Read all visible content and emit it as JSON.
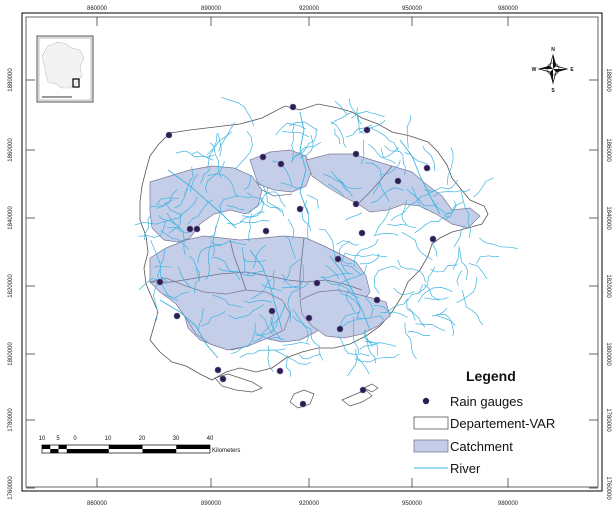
{
  "map": {
    "x_ticks": [
      "860000",
      "890000",
      "920000",
      "950000",
      "980000"
    ],
    "y_ticks": [
      "1880000",
      "1860000",
      "1840000",
      "1820000",
      "1800000",
      "1780000",
      "1760000"
    ],
    "colors": {
      "catchment_fill": "#c5cee9",
      "catchment_stroke": "#7a7a9a",
      "river": "#3bb3e0",
      "gauge": "#2b1f4f",
      "department_stroke": "#555555",
      "frame": "#000000"
    },
    "north_arrow": {
      "n": "N",
      "s": "S",
      "e": "E",
      "w": "W",
      "icon": "compass-rose-icon"
    },
    "inset": {
      "icon": "france-locator-icon"
    }
  },
  "legend": {
    "title": "Legend",
    "items": [
      {
        "label": "Rain gauges",
        "symbol": "dot"
      },
      {
        "label": "Departement-VAR",
        "symbol": "empty-box"
      },
      {
        "label": "Catchment",
        "symbol": "filled-box"
      },
      {
        "label": "River",
        "symbol": "line"
      }
    ]
  },
  "scale_bar": {
    "labels": [
      "10",
      "5",
      "0",
      "10",
      "20",
      "30",
      "40"
    ],
    "unit": "Kilometers"
  }
}
